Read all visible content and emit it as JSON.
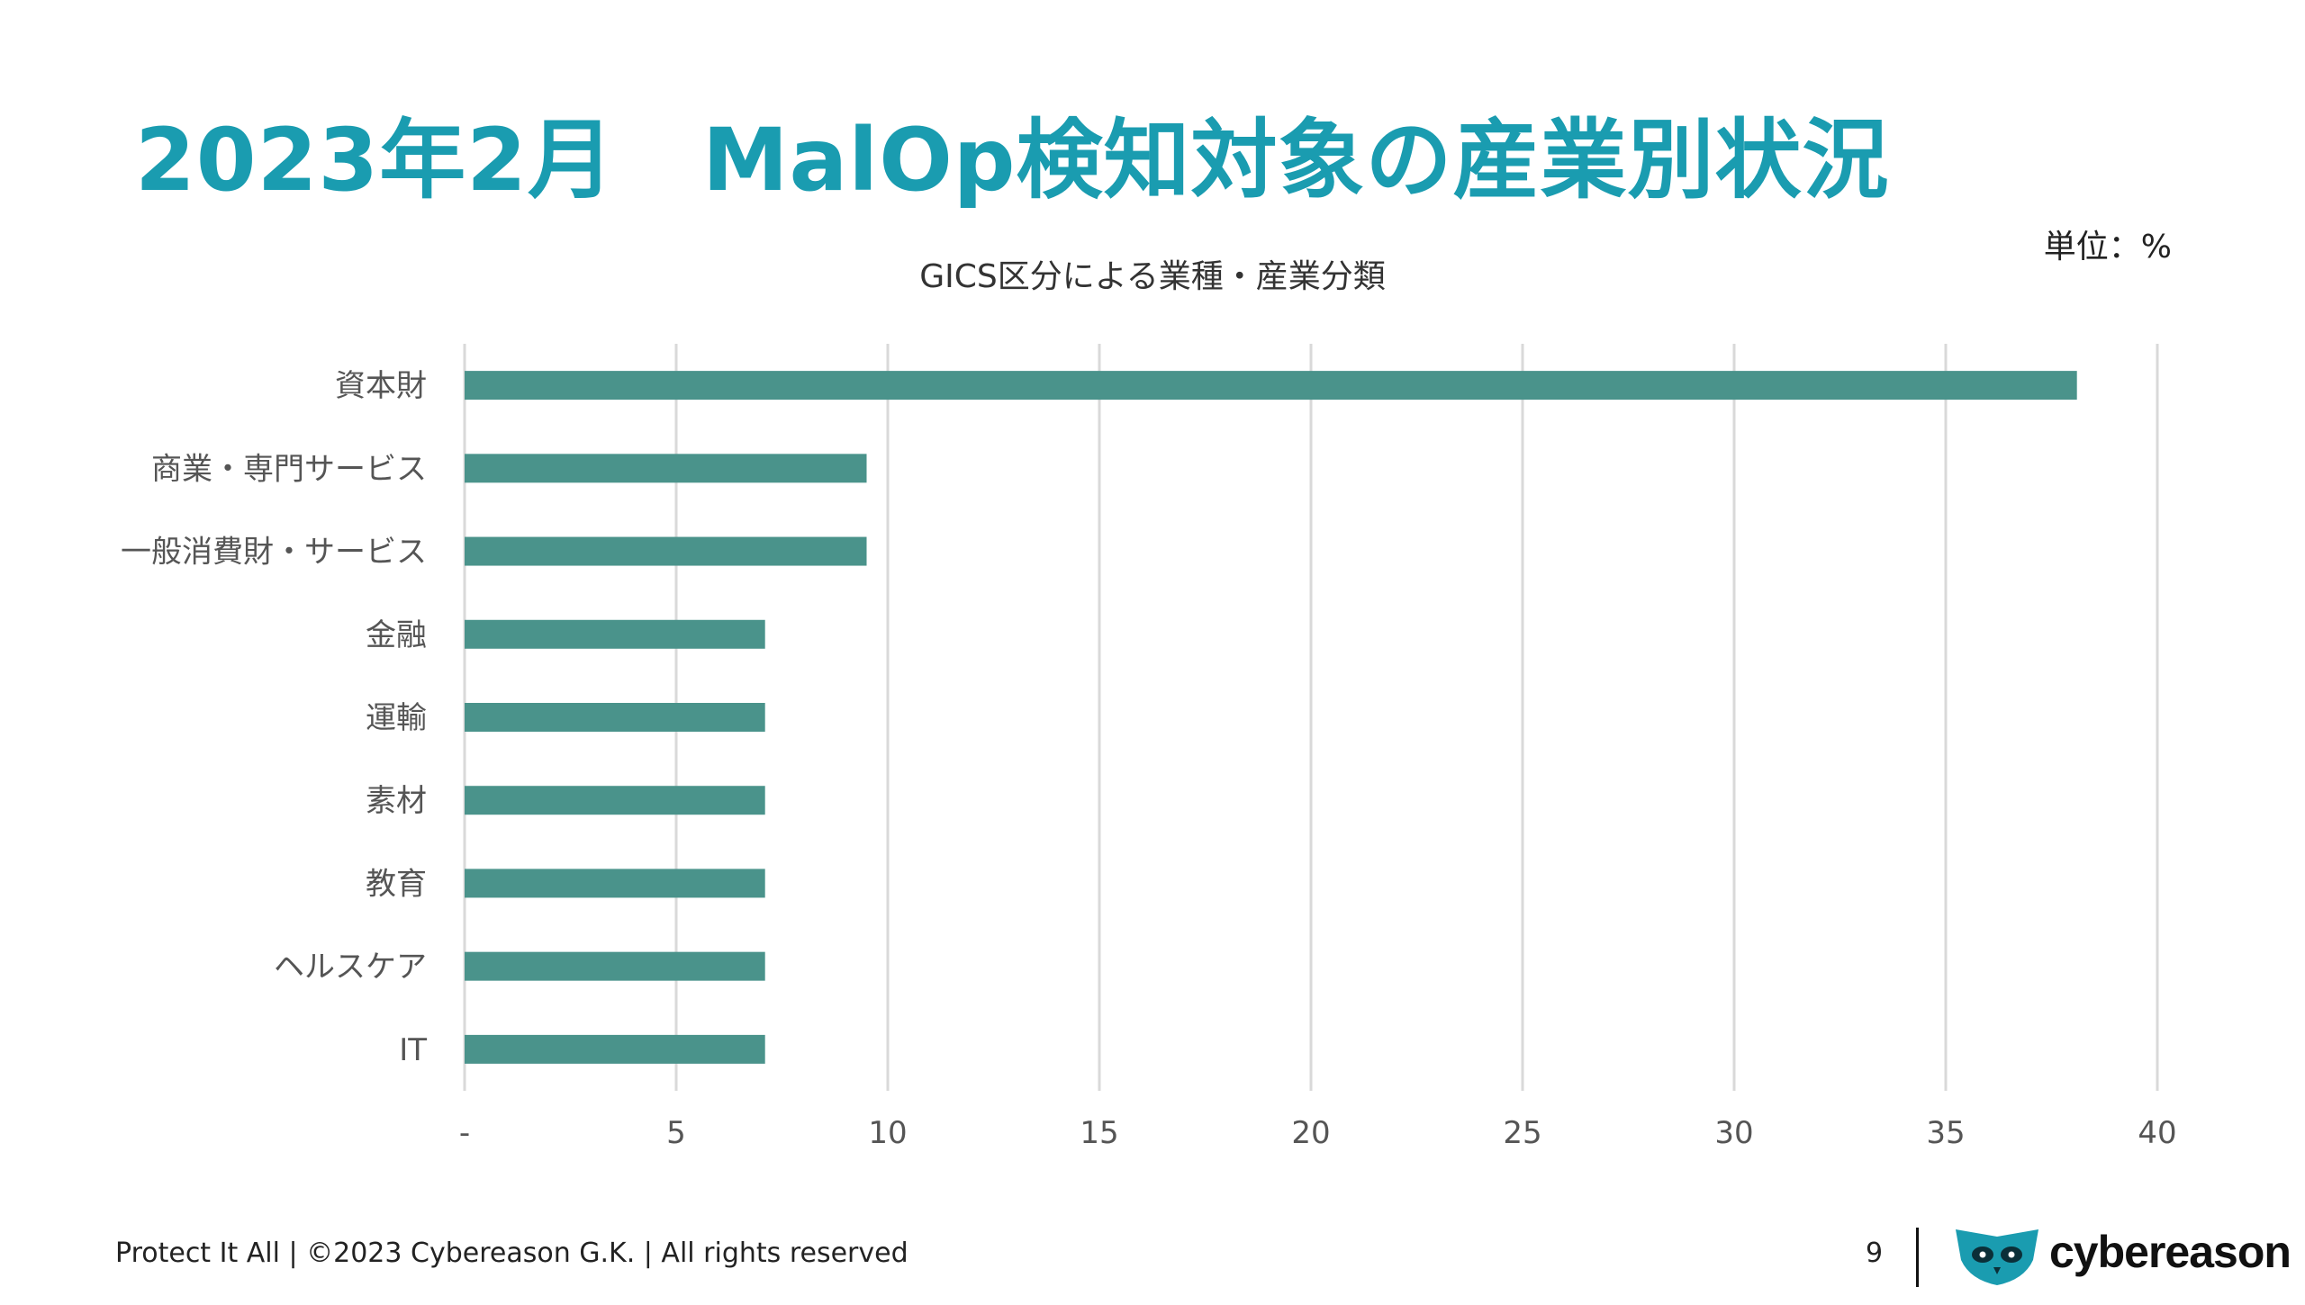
{
  "slide": {
    "title": "2023年2月　MalOp検知対象の産業別状況",
    "unit_label": "単位：%"
  },
  "chart_data": {
    "type": "bar",
    "orientation": "horizontal",
    "title": "GICS区分による業種・産業分類",
    "categories": [
      "資本財",
      "商業・専門サービス",
      "一般消費財・サービス",
      "金融",
      "運輸",
      "素材",
      "教育",
      "ヘルスケア",
      "IT"
    ],
    "values": [
      38.1,
      9.5,
      9.5,
      7.1,
      7.1,
      7.1,
      7.1,
      7.1,
      7.1
    ],
    "xlim": [
      0,
      40
    ],
    "xticks": [
      "-",
      "5",
      "10",
      "15",
      "20",
      "25",
      "30",
      "35",
      "40"
    ],
    "grid": true,
    "bar_color": "#4a938b",
    "grid_color": "#d9d9d9"
  },
  "footer": {
    "text": "Protect It All | ©2023 Cybereason G.K. | All rights reserved",
    "page_number": "9",
    "brand_name": "cybereason",
    "brand_color": "#1a9cb0"
  }
}
